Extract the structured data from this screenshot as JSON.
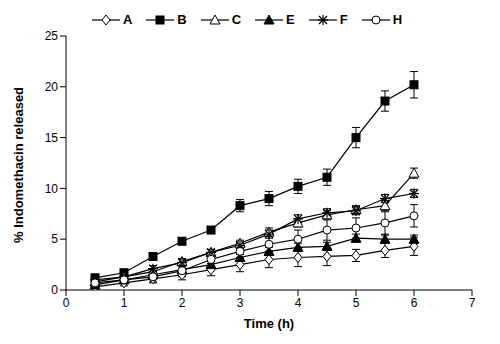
{
  "chart_data": {
    "type": "line",
    "x_label": "Time (h)",
    "y_label": "% Indomethacin released",
    "x": [
      0.5,
      1,
      1.5,
      2,
      2.5,
      3,
      3.5,
      4,
      4.5,
      5,
      5.5,
      6
    ],
    "xlim": [
      0,
      7
    ],
    "xticks": [
      0,
      1,
      2,
      3,
      4,
      5,
      6,
      7
    ],
    "ylim": [
      0,
      25
    ],
    "yticks": [
      0,
      5,
      10,
      15,
      20,
      25
    ],
    "grid": false,
    "legend": "top",
    "series": [
      {
        "name": "A",
        "color": "#000000",
        "marker": "diamond_open",
        "values": [
          0.3,
          0.7,
          1.1,
          1.5,
          2.0,
          2.5,
          3.0,
          3.2,
          3.3,
          3.4,
          3.9,
          4.3
        ],
        "errors": [
          0.2,
          0.3,
          0.4,
          0.5,
          0.6,
          0.7,
          0.8,
          0.9,
          0.9,
          0.6,
          0.7,
          0.9
        ]
      },
      {
        "name": "B",
        "color": "#000000",
        "marker": "square",
        "values": [
          1.2,
          1.7,
          3.3,
          4.8,
          5.9,
          8.3,
          9.0,
          10.2,
          11.1,
          15.0,
          18.6,
          20.2
        ],
        "errors": [
          0.3,
          0.3,
          0.3,
          0.3,
          0.3,
          0.6,
          0.7,
          0.7,
          0.8,
          1.0,
          1.0,
          1.3
        ]
      },
      {
        "name": "C",
        "color": "#000000",
        "marker": "triangle_open",
        "values": [
          0.8,
          1.3,
          1.8,
          2.8,
          3.7,
          4.6,
          5.7,
          6.6,
          7.4,
          7.9,
          8.3,
          11.5
        ],
        "errors": [
          0.2,
          0.3,
          0.3,
          0.3,
          0.3,
          0.3,
          0.4,
          0.4,
          0.4,
          0.4,
          0.5,
          0.5
        ]
      },
      {
        "name": "E",
        "color": "#000000",
        "marker": "triangle",
        "values": [
          0.5,
          1.0,
          1.5,
          2.0,
          2.5,
          3.2,
          3.8,
          4.2,
          4.3,
          5.1,
          5.0,
          5.0
        ],
        "errors": [
          0.2,
          0.2,
          0.3,
          0.3,
          0.3,
          0.3,
          0.4,
          0.4,
          0.4,
          0.4,
          0.4,
          0.4
        ]
      },
      {
        "name": "F",
        "color": "#000000",
        "marker": "star",
        "values": [
          1.0,
          1.3,
          2.1,
          2.7,
          3.7,
          4.4,
          5.5,
          7.0,
          7.6,
          7.8,
          9.0,
          9.5
        ],
        "errors": [
          0.2,
          0.2,
          0.3,
          0.3,
          0.3,
          0.3,
          0.4,
          0.4,
          0.4,
          0.4,
          0.4,
          0.4
        ]
      },
      {
        "name": "H",
        "color": "#000000",
        "marker": "circle_open",
        "values": [
          0.7,
          1.0,
          1.3,
          1.9,
          3.0,
          3.8,
          4.5,
          5.0,
          5.9,
          6.1,
          6.6,
          7.3
        ],
        "errors": [
          0.3,
          0.4,
          0.5,
          0.6,
          0.7,
          0.8,
          0.9,
          0.9,
          1.0,
          1.0,
          1.1,
          1.1
        ]
      }
    ]
  }
}
